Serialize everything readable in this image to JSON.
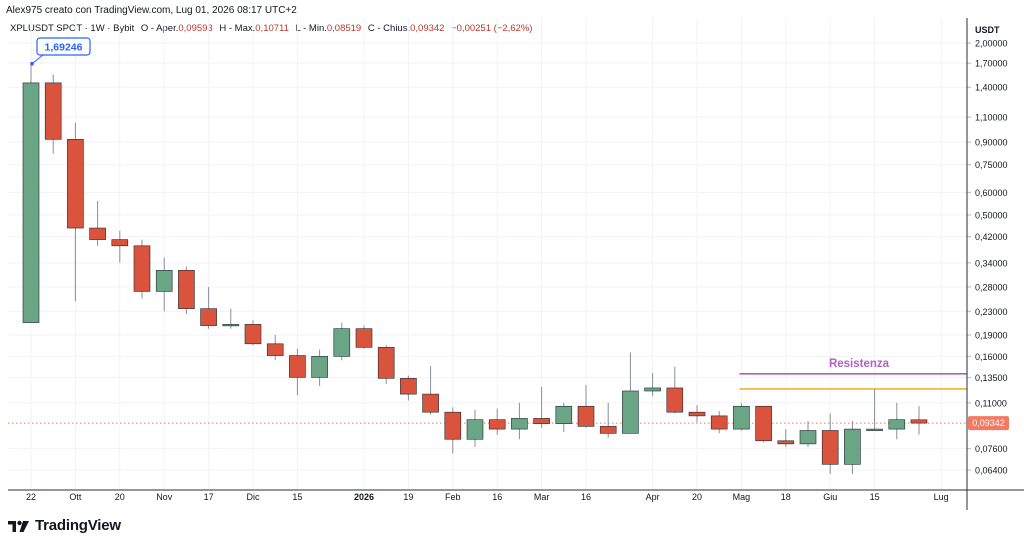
{
  "header": {
    "credit": "Alex975 creato con TradingView.com, Lug 01, 2026 08:17 UTC+2"
  },
  "legend": {
    "symbol": "XPLUSDT SPOT · 1W · Bybit",
    "open_label": "O",
    "open_key": "- Aper.",
    "open_value": "0,09593",
    "high_label": "H",
    "high_key": "- Max.",
    "high_value": "0,10711",
    "low_label": "L",
    "low_key": "- Min.",
    "low_value": "0,08519",
    "close_label": "C",
    "close_key": "- Chius.",
    "close_value": "0,09342",
    "change": "−0,00251 (−2,62%)"
  },
  "price_axis": {
    "unit": "USDT"
  },
  "annotations": {
    "peak_callout": "1,69246",
    "resistance_label": "Resistenza",
    "last_price_tag": "0,09342"
  },
  "colors": {
    "up": "#6aa585",
    "down": "#d9533d",
    "resistance": "#b25fbf",
    "orange_line": "#f0b43a",
    "price_tag": "#f07a62",
    "callout": "#2962ff"
  },
  "footer": {
    "brand": "TradingView"
  },
  "chart_data": {
    "type": "candlestick",
    "interval": "1W",
    "y_scale": "log",
    "y_ticks": [
      {
        "v": 2.0,
        "label": "2,00000"
      },
      {
        "v": 1.7,
        "label": "1,70000"
      },
      {
        "v": 1.4,
        "label": "1,40000"
      },
      {
        "v": 1.1,
        "label": "1,10000"
      },
      {
        "v": 0.9,
        "label": "0,90000"
      },
      {
        "v": 0.75,
        "label": "0,75000"
      },
      {
        "v": 0.6,
        "label": "0,60000"
      },
      {
        "v": 0.5,
        "label": "0,50000"
      },
      {
        "v": 0.42,
        "label": "0,42000"
      },
      {
        "v": 0.34,
        "label": "0,34000"
      },
      {
        "v": 0.28,
        "label": "0,28000"
      },
      {
        "v": 0.23,
        "label": "0,23000"
      },
      {
        "v": 0.19,
        "label": "0,19000"
      },
      {
        "v": 0.16,
        "label": "0,16000"
      },
      {
        "v": 0.135,
        "label": "0,13500"
      },
      {
        "v": 0.11,
        "label": "0,11000"
      },
      {
        "v": 0.076,
        "label": "0,07600"
      },
      {
        "v": 0.064,
        "label": "0,06400"
      }
    ],
    "x_ticks": [
      {
        "i": 0,
        "label": "22",
        "bold": false
      },
      {
        "i": 2,
        "label": "Ott",
        "bold": false
      },
      {
        "i": 4,
        "label": "20",
        "bold": false
      },
      {
        "i": 6,
        "label": "Nov",
        "bold": false
      },
      {
        "i": 8,
        "label": "17",
        "bold": false
      },
      {
        "i": 10,
        "label": "Dic",
        "bold": false
      },
      {
        "i": 12,
        "label": "15",
        "bold": false
      },
      {
        "i": 15,
        "label": "2026",
        "bold": true
      },
      {
        "i": 17,
        "label": "19",
        "bold": false
      },
      {
        "i": 19,
        "label": "Feb",
        "bold": false
      },
      {
        "i": 21,
        "label": "16",
        "bold": false
      },
      {
        "i": 23,
        "label": "Mar",
        "bold": false
      },
      {
        "i": 25,
        "label": "16",
        "bold": false
      },
      {
        "i": 28,
        "label": "Apr",
        "bold": false
      },
      {
        "i": 30,
        "label": "20",
        "bold": false
      },
      {
        "i": 32,
        "label": "Mag",
        "bold": false
      },
      {
        "i": 34,
        "label": "18",
        "bold": false
      },
      {
        "i": 36,
        "label": "Giu",
        "bold": false
      },
      {
        "i": 38,
        "label": "15",
        "bold": false
      },
      {
        "i": 41,
        "label": "Lug",
        "bold": false
      }
    ],
    "candles": [
      {
        "o": 0.21,
        "h": 1.69246,
        "l": 0.21,
        "c": 1.45
      },
      {
        "o": 1.45,
        "h": 1.55,
        "l": 0.82,
        "c": 0.92
      },
      {
        "o": 0.92,
        "h": 1.05,
        "l": 0.25,
        "c": 0.45
      },
      {
        "o": 0.45,
        "h": 0.56,
        "l": 0.39,
        "c": 0.41
      },
      {
        "o": 0.41,
        "h": 0.44,
        "l": 0.34,
        "c": 0.39
      },
      {
        "o": 0.39,
        "h": 0.41,
        "l": 0.255,
        "c": 0.27
      },
      {
        "o": 0.27,
        "h": 0.355,
        "l": 0.23,
        "c": 0.32
      },
      {
        "o": 0.32,
        "h": 0.33,
        "l": 0.225,
        "c": 0.235
      },
      {
        "o": 0.235,
        "h": 0.28,
        "l": 0.2,
        "c": 0.205
      },
      {
        "o": 0.205,
        "h": 0.235,
        "l": 0.2,
        "c": 0.207
      },
      {
        "o": 0.207,
        "h": 0.214,
        "l": 0.175,
        "c": 0.177
      },
      {
        "o": 0.177,
        "h": 0.19,
        "l": 0.155,
        "c": 0.161
      },
      {
        "o": 0.161,
        "h": 0.17,
        "l": 0.117,
        "c": 0.135
      },
      {
        "o": 0.135,
        "h": 0.169,
        "l": 0.126,
        "c": 0.16
      },
      {
        "o": 0.16,
        "h": 0.21,
        "l": 0.155,
        "c": 0.2
      },
      {
        "o": 0.2,
        "h": 0.205,
        "l": 0.17,
        "c": 0.172
      },
      {
        "o": 0.172,
        "h": 0.175,
        "l": 0.128,
        "c": 0.134
      },
      {
        "o": 0.134,
        "h": 0.137,
        "l": 0.112,
        "c": 0.118
      },
      {
        "o": 0.118,
        "h": 0.148,
        "l": 0.1,
        "c": 0.102
      },
      {
        "o": 0.102,
        "h": 0.106,
        "l": 0.073,
        "c": 0.082
      },
      {
        "o": 0.082,
        "h": 0.104,
        "l": 0.077,
        "c": 0.096
      },
      {
        "o": 0.096,
        "h": 0.105,
        "l": 0.085,
        "c": 0.089
      },
      {
        "o": 0.089,
        "h": 0.11,
        "l": 0.082,
        "c": 0.097
      },
      {
        "o": 0.097,
        "h": 0.125,
        "l": 0.09,
        "c": 0.093
      },
      {
        "o": 0.093,
        "h": 0.11,
        "l": 0.087,
        "c": 0.107
      },
      {
        "o": 0.107,
        "h": 0.127,
        "l": 0.09,
        "c": 0.091
      },
      {
        "o": 0.091,
        "h": 0.11,
        "l": 0.083,
        "c": 0.086
      },
      {
        "o": 0.086,
        "h": 0.165,
        "l": 0.086,
        "c": 0.121
      },
      {
        "o": 0.121,
        "h": 0.14,
        "l": 0.116,
        "c": 0.124
      },
      {
        "o": 0.124,
        "h": 0.147,
        "l": 0.101,
        "c": 0.102
      },
      {
        "o": 0.102,
        "h": 0.108,
        "l": 0.094,
        "c": 0.099
      },
      {
        "o": 0.099,
        "h": 0.103,
        "l": 0.086,
        "c": 0.089
      },
      {
        "o": 0.089,
        "h": 0.11,
        "l": 0.088,
        "c": 0.107
      },
      {
        "o": 0.107,
        "h": 0.107,
        "l": 0.08,
        "c": 0.081
      },
      {
        "o": 0.081,
        "h": 0.089,
        "l": 0.077,
        "c": 0.079
      },
      {
        "o": 0.079,
        "h": 0.095,
        "l": 0.077,
        "c": 0.088
      },
      {
        "o": 0.088,
        "h": 0.101,
        "l": 0.062,
        "c": 0.067
      },
      {
        "o": 0.067,
        "h": 0.095,
        "l": 0.062,
        "c": 0.089
      },
      {
        "o": 0.089,
        "h": 0.123,
        "l": 0.088,
        "c": 0.089
      },
      {
        "o": 0.089,
        "h": 0.11,
        "l": 0.082,
        "c": 0.096
      },
      {
        "o": 0.09593,
        "h": 0.10711,
        "l": 0.08519,
        "c": 0.09342
      }
    ],
    "lines": [
      {
        "name": "Resistenza",
        "value": 0.139,
        "color": "#b25fbf",
        "from_index": 32
      },
      {
        "value": 0.123,
        "color": "#f0b43a",
        "from_index": 32
      }
    ],
    "last_price": 0.09342,
    "peak_value": 1.69246
  }
}
